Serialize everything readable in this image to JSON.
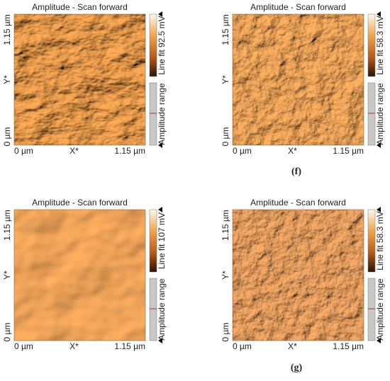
{
  "panels": [
    {
      "title": "Amplitude - Scan forward",
      "y_labels": [
        "1.15 µm",
        "Y*",
        "0 µm"
      ],
      "x_labels": [
        "0 µm",
        "X*",
        "1.15 µm"
      ],
      "colorbar_label": "Line fit 92.5 mV",
      "range_label": "Amplitude range"
    },
    {
      "title": "Amplitude - Scan forward",
      "y_labels": [
        "1.15 µm",
        "Y*",
        "0 µm"
      ],
      "x_labels": [
        "0 µm",
        "X*",
        "1.15 µm"
      ],
      "colorbar_label": "Line fit 58.3 mV",
      "range_label": "Amplitude range"
    },
    {
      "title": "Amplitude - Scan forward",
      "y_labels": [
        "1.15 µm",
        "Y*",
        "0 µm"
      ],
      "x_labels": [
        "0 µm",
        "X*",
        "1.15 µm"
      ],
      "colorbar_label": "Line fit 107 mV",
      "range_label": "Amplitude range"
    },
    {
      "title": "Amplitude - Scan forward",
      "y_labels": [
        "1.15 µm",
        "Y*",
        "0 µm"
      ],
      "x_labels": [
        "0 µm",
        "X*",
        "1.15 µm"
      ],
      "colorbar_label": "Line fit 58.3 mV",
      "range_label": "Amplitude range"
    }
  ],
  "captions": [
    "(f)",
    "(g)"
  ]
}
